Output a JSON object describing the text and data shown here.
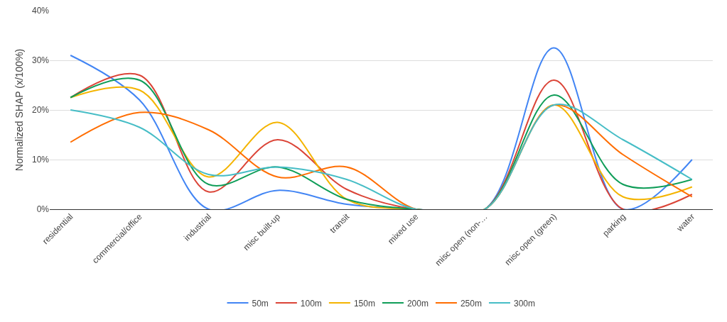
{
  "chart_data": {
    "type": "line",
    "ylabel": "Normalized SHAP (x/100%)",
    "categories": [
      "residential",
      "commercial/office",
      "industrial",
      "misc built-up",
      "transit",
      "mixed use",
      "misc open (non-…",
      "misc open (green)",
      "parking",
      "water"
    ],
    "series": [
      {
        "name": "50m",
        "color": "#4285f4",
        "values": [
          31,
          22,
          0,
          3.8,
          1,
          0,
          0,
          32.5,
          0,
          10
        ]
      },
      {
        "name": "100m",
        "color": "#db4437",
        "values": [
          22.5,
          27,
          3.5,
          14,
          4,
          0,
          0,
          26,
          0,
          3
        ]
      },
      {
        "name": "150m",
        "color": "#f4b400",
        "values": [
          22.5,
          24,
          6.5,
          17.5,
          2,
          0,
          0,
          21,
          2.5,
          4.5
        ]
      },
      {
        "name": "200m",
        "color": "#0f9d58",
        "values": [
          22.5,
          26,
          5,
          8.5,
          2,
          0,
          0,
          23,
          5,
          6
        ]
      },
      {
        "name": "250m",
        "color": "#ff6d01",
        "values": [
          13.5,
          19.5,
          16,
          6.5,
          8.5,
          0,
          0,
          21,
          11,
          2.5
        ]
      },
      {
        "name": "300m",
        "color": "#46bdc6",
        "values": [
          20,
          16.5,
          7,
          8.5,
          6,
          0,
          0,
          21,
          14,
          6
        ]
      }
    ],
    "ylim": [
      0,
      40
    ],
    "yticks": [
      {
        "value": 0,
        "label": "0%"
      },
      {
        "value": 10,
        "label": "10%"
      },
      {
        "value": 20,
        "label": "20%"
      },
      {
        "value": 30,
        "label": "30%"
      },
      {
        "value": 40,
        "label": "40%"
      }
    ],
    "grid": "y",
    "legend": "bottom",
    "marker": "none",
    "line_style": "solid"
  }
}
